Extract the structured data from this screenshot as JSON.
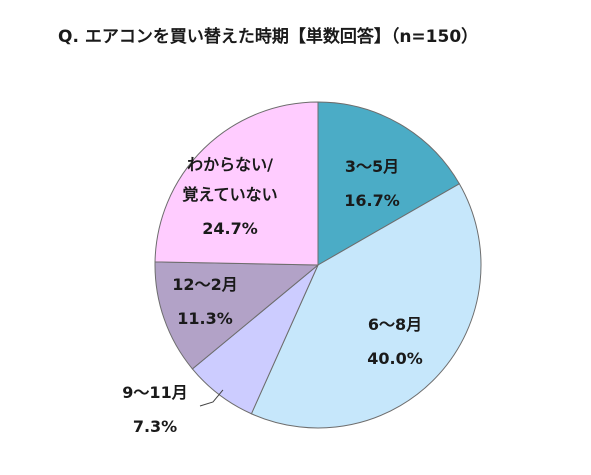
{
  "chart_data": {
    "type": "pie",
    "title": "Q.  エアコンを買い替えた時期【単数回答】（n=150）",
    "slices": [
      {
        "label": "3～5月",
        "value": 16.7,
        "value_label": "16.7%",
        "color": "#4bacc6"
      },
      {
        "label": "6～8月",
        "value": 40.0,
        "value_label": "40.0%",
        "color": "#c6e7fb"
      },
      {
        "label": "9～11月",
        "value": 7.3,
        "value_label": "7.3%",
        "color": "#ccccff"
      },
      {
        "label": "12～2月",
        "value": 11.3,
        "value_label": "11.3%",
        "color": "#b2a2c7"
      },
      {
        "label": "わからない/覚えていない",
        "label_lines": [
          "わからない/",
          "覚えていない"
        ],
        "value": 24.7,
        "value_label": "24.7%",
        "color": "#ffccff"
      }
    ],
    "start": "12 o'clock",
    "direction": "clockwise",
    "legend": "none",
    "data_labels": "inside, except 9～11月 outside with leader line"
  }
}
